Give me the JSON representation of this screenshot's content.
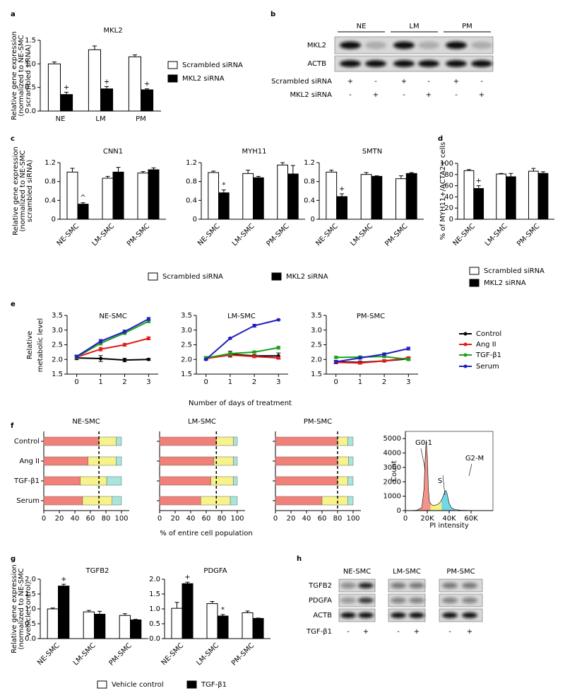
{
  "panel_labels": [
    "a",
    "b",
    "c",
    "d",
    "e",
    "f",
    "g",
    "h"
  ],
  "chart_data": [
    {
      "type": "bar",
      "title": "MKL2",
      "ylabel": [
        "Relative gene expression",
        "(normalized to NE-SMC",
        "scrambled siRNA)"
      ],
      "categories": [
        "NE",
        "LM",
        "PM"
      ],
      "ylim": [
        0,
        1.5
      ],
      "yticks": [
        {
          "value": 0,
          "label": "0.0"
        },
        0.5,
        {
          "value": 1,
          "label": "1.0"
        },
        1.5
      ],
      "series": [
        {
          "name": "Scrambled siRNA",
          "color": "#ffffff",
          "values": [
            1.0,
            1.3,
            1.15
          ],
          "errors": [
            0.04,
            0.08,
            0.04
          ]
        },
        {
          "name": "MKL2 siRNA",
          "color": "#000000",
          "values": [
            0.35,
            0.47,
            0.45
          ],
          "errors": [
            0.05,
            0.05,
            0.02
          ],
          "markers": [
            "+",
            "+",
            "+"
          ]
        }
      ]
    },
    {
      "type": "bar",
      "title": "CNN1",
      "ylabel": [
        "Relative gene expression",
        "(normalized to NE-SMC",
        "scrambled siRNA)"
      ],
      "categories": [
        "NE-SMC",
        "LM-SMC",
        "PM-SMC"
      ],
      "ylim": [
        0,
        1.2
      ],
      "yticks": [
        0,
        0.4,
        0.8,
        1.2
      ],
      "series": [
        {
          "name": "Scrambled siRNA",
          "color": "#ffffff",
          "values": [
            1.0,
            0.87,
            0.98
          ],
          "errors": [
            0.08,
            0.04,
            0.03
          ]
        },
        {
          "name": "MKL2 siRNA",
          "color": "#000000",
          "values": [
            0.32,
            1.0,
            1.05
          ],
          "errors": [
            0.03,
            0.1,
            0.04
          ],
          "markers": [
            "^",
            null,
            null
          ]
        }
      ]
    },
    {
      "type": "bar",
      "title": "MYH11",
      "categories": [
        "NE-SMC",
        "LM-SMC",
        "PM-SMC"
      ],
      "ylim": [
        0,
        1.2
      ],
      "yticks": [
        0,
        0.4,
        0.8,
        1.2
      ],
      "series": [
        {
          "color": "#ffffff",
          "values": [
            0.99,
            0.97,
            1.15
          ],
          "errors": [
            0.03,
            0.07,
            0.05
          ]
        },
        {
          "color": "#000000",
          "values": [
            0.56,
            0.88,
            0.96
          ],
          "errors": [
            0.06,
            0.03,
            0.18
          ],
          "markers": [
            "*",
            null,
            null
          ]
        }
      ]
    },
    {
      "type": "bar",
      "title": "SMTN",
      "categories": [
        "NE-SMC",
        "LM-SMC",
        "PM-SMC"
      ],
      "ylim": [
        0,
        1.2
      ],
      "yticks": [
        0,
        0.4,
        0.8,
        1.2
      ],
      "series": [
        {
          "color": "#ffffff",
          "values": [
            1.0,
            0.95,
            0.86
          ],
          "errors": [
            0.04,
            0.04,
            0.06
          ]
        },
        {
          "color": "#000000",
          "values": [
            0.48,
            0.91,
            0.97
          ],
          "errors": [
            0.06,
            0.01,
            0.02
          ],
          "markers": [
            "+",
            null,
            null
          ]
        }
      ]
    },
    {
      "type": "bar",
      "ylabel": [
        "% of MYH11+/ACTA2+ cells"
      ],
      "categories": [
        "NE-SMC",
        "LM-SMC",
        "PM-SMC"
      ],
      "ylim": [
        0,
        100
      ],
      "yticks": [
        0,
        20,
        40,
        60,
        80,
        100
      ],
      "series": [
        {
          "name": "Scrambled siRNA",
          "color": "#ffffff",
          "values": [
            87,
            81,
            86
          ],
          "errors": [
            2,
            1,
            5
          ]
        },
        {
          "name": "MKL2 siRNA",
          "color": "#000000",
          "values": [
            55,
            76,
            82
          ],
          "errors": [
            5,
            6,
            3
          ],
          "markers": [
            "+",
            null,
            null
          ]
        }
      ]
    },
    {
      "type": "line",
      "title": "NE-SMC",
      "ylabel": [
        "Relative",
        "metabolic level"
      ],
      "x": [
        0,
        1,
        2,
        3
      ],
      "xlim": [
        -0.4,
        3.4
      ],
      "xticks": [
        0,
        1,
        2,
        3
      ],
      "ylim": [
        1.5,
        3.5
      ],
      "yticks": [
        1.5,
        {
          "value": 2,
          "label": "2.0"
        },
        2.5,
        {
          "value": 3,
          "label": "3.0"
        },
        3.5
      ],
      "series": [
        {
          "name": "Control",
          "color": "#000000",
          "values": [
            2.05,
            2.03,
            1.98,
            2.0
          ],
          "errors": [
            0.06,
            0.1,
            0.06,
            0.03
          ]
        },
        {
          "name": "Ang II",
          "color": "#e31a1c",
          "values": [
            2.08,
            2.35,
            2.5,
            2.72
          ],
          "errors": [
            0.05,
            0.06,
            0.05,
            0.05
          ]
        },
        {
          "name": "TGF-β1",
          "color": "#1aa11a",
          "values": [
            2.08,
            2.55,
            2.9,
            3.3
          ],
          "errors": [
            0.05,
            0.06,
            0.05,
            0.05
          ]
        },
        {
          "name": "Serum",
          "color": "#1f1fbf",
          "values": [
            2.1,
            2.62,
            2.95,
            3.38
          ],
          "errors": [
            0.05,
            0.06,
            0.05,
            0.05
          ]
        }
      ]
    },
    {
      "type": "line",
      "title": "LM-SMC",
      "xlabel": "Number of days of treatment",
      "x": [
        0,
        1,
        2,
        3
      ],
      "xlim": [
        -0.4,
        3.4
      ],
      "xticks": [
        0,
        1,
        2,
        3
      ],
      "ylim": [
        1.5,
        3.5
      ],
      "yticks": [
        1.5,
        {
          "value": 2,
          "label": "2.0"
        },
        2.5,
        {
          "value": 3,
          "label": "3.0"
        },
        3.5
      ],
      "series": [
        {
          "color": "#000000",
          "values": [
            2.05,
            2.18,
            2.12,
            2.12
          ],
          "errors": [
            0.05,
            0.1,
            0.04,
            0.1
          ]
        },
        {
          "color": "#e31a1c",
          "values": [
            2.03,
            2.15,
            2.1,
            2.05
          ],
          "errors": [
            0.05,
            0.05,
            0.04,
            0.04
          ]
        },
        {
          "color": "#1aa11a",
          "values": [
            2.05,
            2.2,
            2.25,
            2.4
          ],
          "errors": [
            0.05,
            0.04,
            0.04,
            0.05
          ]
        },
        {
          "color": "#1f1fbf",
          "values": [
            2.0,
            2.72,
            3.15,
            3.35
          ],
          "errors": [
            0.03,
            0.02,
            0.05,
            0.02
          ]
        }
      ]
    },
    {
      "type": "line",
      "title": "PM-SMC",
      "x": [
        0,
        1,
        2,
        3
      ],
      "xlim": [
        -0.4,
        3.4
      ],
      "xticks": [
        0,
        1,
        2,
        3
      ],
      "ylim": [
        1.5,
        3.5
      ],
      "yticks": [
        1.5,
        {
          "value": 2,
          "label": "2.0"
        },
        2.5,
        {
          "value": 3,
          "label": "3.0"
        },
        3.5
      ],
      "series": [
        {
          "color": "#000000",
          "values": [
            1.92,
            1.9,
            1.95,
            2.02
          ],
          "errors": [
            0.05,
            0.04,
            0.04,
            0.04
          ]
        },
        {
          "color": "#e31a1c",
          "values": [
            1.9,
            1.88,
            1.95,
            2.05
          ],
          "errors": [
            0.05,
            0.04,
            0.04,
            0.04
          ]
        },
        {
          "color": "#1aa11a",
          "values": [
            2.07,
            2.08,
            2.1,
            2.0
          ],
          "errors": [
            0.04,
            0.04,
            0.04,
            0.04
          ]
        },
        {
          "color": "#1f1fbf",
          "values": [
            1.92,
            2.05,
            2.18,
            2.37
          ],
          "errors": [
            0.05,
            0.04,
            0.04,
            0.05
          ]
        }
      ]
    },
    {
      "type": "barh_stacked",
      "title": "NE-SMC",
      "categories": [
        "Control",
        "Ang II",
        "TGF-β1",
        "Serum"
      ],
      "xlim": [
        0,
        110
      ],
      "xticks": [
        0,
        20,
        40,
        60,
        80,
        100
      ],
      "reference": 71,
      "series": [
        {
          "color": "#f08078",
          "values": [
            71,
            57,
            47,
            50
          ]
        },
        {
          "color": "#f7f38a",
          "values": [
            22,
            36,
            34,
            38
          ]
        },
        {
          "color": "#a8e6dc",
          "values": [
            7,
            7,
            19,
            12
          ]
        }
      ]
    },
    {
      "type": "barh_stacked",
      "title": "LM-SMC",
      "xlabel": "% of entire cell population",
      "categories": [
        null,
        null,
        null,
        null
      ],
      "xlim": [
        0,
        110
      ],
      "xticks": [
        0,
        20,
        40,
        60,
        80,
        100
      ],
      "reference": 73,
      "series": [
        {
          "color": "#f08078",
          "values": [
            73,
            70,
            66,
            53
          ]
        },
        {
          "color": "#f7f38a",
          "values": [
            22,
            25,
            29,
            38
          ]
        },
        {
          "color": "#a8e6dc",
          "values": [
            5,
            5,
            5,
            9
          ]
        }
      ]
    },
    {
      "type": "barh_stacked",
      "title": "PM-SMC",
      "categories": [
        null,
        null,
        null,
        null
      ],
      "xlim": [
        0,
        110
      ],
      "xticks": [
        0,
        20,
        40,
        60,
        80,
        100
      ],
      "reference": 80,
      "series": [
        {
          "color": "#f08078",
          "values": [
            80,
            80,
            80,
            60
          ]
        },
        {
          "color": "#f7f38a",
          "values": [
            13,
            14,
            13,
            33
          ]
        },
        {
          "color": "#a8e6dc",
          "values": [
            7,
            6,
            7,
            7
          ]
        }
      ]
    },
    {
      "type": "area",
      "xlabel": "PI intensity",
      "ylabel": [
        "Count"
      ],
      "xlim": [
        0,
        80000
      ],
      "xticks": [
        0,
        {
          "value": 20000,
          "label": "20K"
        },
        {
          "value": 40000,
          "label": "40K"
        },
        {
          "value": 60000,
          "label": "60K"
        }
      ],
      "ylim": [
        0,
        5500
      ],
      "yticks": [
        0,
        1000,
        2000,
        3000,
        4000,
        5000
      ],
      "x": [
        0,
        10000,
        15000,
        17000,
        18000,
        19000,
        20000,
        21000,
        22000,
        24000,
        26000,
        28000,
        30000,
        32000,
        34000,
        36000,
        37000,
        38000,
        40000,
        42000,
        45000,
        50000,
        60000,
        70000
      ],
      "series": [
        {
          "color": "#000000",
          "values": [
            0,
            20,
            200,
            1500,
            3500,
            4900,
            3800,
            1500,
            600,
            400,
            350,
            400,
            450,
            600,
            900,
            1300,
            1400,
            1200,
            500,
            200,
            80,
            30,
            10,
            0
          ]
        }
      ],
      "regions": [
        {
          "name": "G0-1",
          "color": "#f08078",
          "from": 0,
          "to": 23000
        },
        {
          "name": "S",
          "color": "#f5ef6a",
          "from": 23000,
          "to": 33000
        },
        {
          "name": "G2-M",
          "color": "#5ad0e0",
          "from": 33000,
          "to": 46000
        }
      ]
    },
    {
      "type": "bar",
      "title": "TGFB2",
      "ylabel": [
        "Relative gene expression",
        "(normalized to NE-SMC",
        "vehicle control)"
      ],
      "categories": [
        "NE-SMC",
        "LM-SMC",
        "PM-SMC"
      ],
      "ylim": [
        0,
        2
      ],
      "yticks": [
        {
          "value": 0,
          "label": "0.0"
        },
        0.5,
        {
          "value": 1,
          "label": "1.0"
        },
        1.5,
        {
          "value": 2,
          "label": "2.0"
        }
      ],
      "series": [
        {
          "name": "Vehicle control",
          "color": "#ffffff",
          "values": [
            1.0,
            0.9,
            0.78
          ],
          "errors": [
            0.03,
            0.05,
            0.06
          ]
        },
        {
          "name": "TGF-β1",
          "color": "#000000",
          "values": [
            1.77,
            0.82,
            0.63
          ],
          "errors": [
            0.06,
            0.1,
            0.02
          ],
          "markers": [
            "+",
            null,
            null
          ]
        }
      ]
    },
    {
      "type": "bar",
      "title": "PDGFA",
      "categories": [
        "NE-SMC",
        "LM-SMC",
        "PM-SMC"
      ],
      "ylim": [
        0,
        2
      ],
      "yticks": [
        {
          "value": 0,
          "label": "0.0"
        },
        0.5,
        {
          "value": 1,
          "label": "1.0"
        },
        1.5,
        {
          "value": 2,
          "label": "2.0"
        }
      ],
      "series": [
        {
          "color": "#ffffff",
          "values": [
            1.02,
            1.18,
            0.87
          ],
          "errors": [
            0.2,
            0.07,
            0.06
          ]
        },
        {
          "color": "#000000",
          "values": [
            1.85,
            0.76,
            0.68
          ],
          "errors": [
            0.05,
            0.05,
            0.01
          ],
          "markers": [
            "+",
            "*",
            null
          ]
        }
      ]
    }
  ],
  "blots": [
    {
      "groups": [
        "NE",
        "LM",
        "PM"
      ],
      "rows": [
        "MKL2",
        "ACTB"
      ],
      "conditions": [
        {
          "name": "Scrambled siRNA",
          "signs": [
            "+",
            "-",
            "+",
            "-",
            "+",
            "-"
          ]
        },
        {
          "name": "MKL2 siRNA",
          "signs": [
            "-",
            "+",
            "-",
            "+",
            "-",
            "+"
          ]
        }
      ]
    },
    {
      "groups": [
        "NE-SMC",
        "LM-SMC",
        "PM-SMC"
      ],
      "rows": [
        "TGFB2",
        "PDGFA",
        "ACTB"
      ],
      "conditions": [
        {
          "name": "TGF-β1",
          "signs": [
            "-",
            "+",
            "-",
            "+",
            "-",
            "+"
          ]
        }
      ]
    }
  ]
}
